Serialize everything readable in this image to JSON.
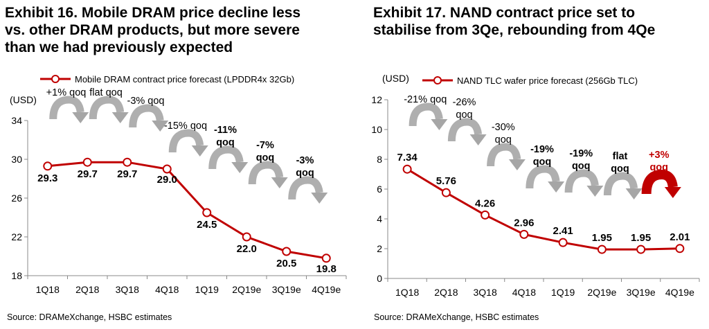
{
  "chart_data": [
    {
      "type": "line",
      "title": "Exhibit 16. Mobile DRAM price decline less vs. other DRAM products, but more severe than we had previously expected",
      "title_lines": [
        "Exhibit 16. Mobile DRAM price decline less",
        "vs. other DRAM products, but more severe",
        "than we had previously expected"
      ],
      "ylabel": "(USD)",
      "categories": [
        "1Q18",
        "2Q18",
        "3Q18",
        "4Q18",
        "1Q19",
        "2Q19e",
        "3Q19e",
        "4Q19e"
      ],
      "series": [
        {
          "name": "Mobile DRAM  contract price forecast (LPDDR4x 32Gb)",
          "values": [
            29.3,
            29.7,
            29.7,
            29.0,
            24.5,
            22.0,
            20.5,
            19.8
          ]
        }
      ],
      "value_labels": [
        "29.3",
        "29.7",
        "29.7",
        "29.0",
        "24.5",
        "22.0",
        "20.5",
        "19.8"
      ],
      "yticks": [
        18,
        22,
        26,
        30,
        34
      ],
      "ylim": [
        18,
        34
      ],
      "legend_position": "top",
      "grid": false,
      "colors": {
        "line": "#C00000",
        "arrow": "#A6A6A6"
      },
      "annotations": [
        {
          "lines": [
            "+1% qoq"
          ],
          "bold": false
        },
        {
          "lines": [
            "flat qoq"
          ],
          "bold": false
        },
        {
          "lines": [
            "-3% qoq"
          ],
          "bold": false
        },
        {
          "lines": [
            "-15% qoq"
          ],
          "bold": false
        },
        {
          "lines": [
            "-11%",
            "qoq"
          ],
          "bold": true
        },
        {
          "lines": [
            "-7%",
            "qoq"
          ],
          "bold": true
        },
        {
          "lines": [
            "-3%",
            "qoq"
          ],
          "bold": true
        }
      ],
      "source": "Source: DRAMeXchange, HSBC estimates"
    },
    {
      "type": "line",
      "title": "Exhibit 17. NAND contract price set to stabilise from 3Qe, rebounding from 4Qe",
      "title_lines": [
        "Exhibit 17. NAND contract price set to",
        "stabilise from 3Qe, rebounding from 4Qe"
      ],
      "ylabel": "(USD)",
      "categories": [
        "1Q18",
        "2Q18",
        "3Q18",
        "4Q18",
        "1Q19",
        "2Q19e",
        "3Q19e",
        "4Q19e"
      ],
      "series": [
        {
          "name": "NAND TLC wafer price forecast (256Gb TLC)",
          "values": [
            7.34,
            5.76,
            4.26,
            2.96,
            2.41,
            1.95,
            1.95,
            2.01
          ]
        }
      ],
      "value_labels": [
        "7.34",
        "5.76",
        "4.26",
        "2.96",
        "2.41",
        "1.95",
        "1.95",
        "2.01"
      ],
      "yticks": [
        0,
        2,
        4,
        6,
        8,
        10,
        12
      ],
      "ylim": [
        0,
        12
      ],
      "legend_position": "top",
      "grid": false,
      "colors": {
        "line": "#C00000",
        "arrow": "#A6A6A6",
        "rebound_arrow": "#C00000"
      },
      "annotations": [
        {
          "lines": [
            "-21% qoq"
          ],
          "bold": false
        },
        {
          "lines": [
            "-26%",
            "qoq"
          ],
          "bold": false
        },
        {
          "lines": [
            "-30%",
            "qoq"
          ],
          "bold": false
        },
        {
          "lines": [
            "-19%",
            "qoq"
          ],
          "bold": true
        },
        {
          "lines": [
            "-19%",
            "qoq"
          ],
          "bold": true
        },
        {
          "lines": [
            "flat",
            "qoq"
          ],
          "bold": true
        },
        {
          "lines": [
            "+3%",
            "qoq"
          ],
          "bold": true,
          "color": "#C00000"
        }
      ],
      "source": "Source: DRAMeXchange, HSBC estimates"
    }
  ]
}
